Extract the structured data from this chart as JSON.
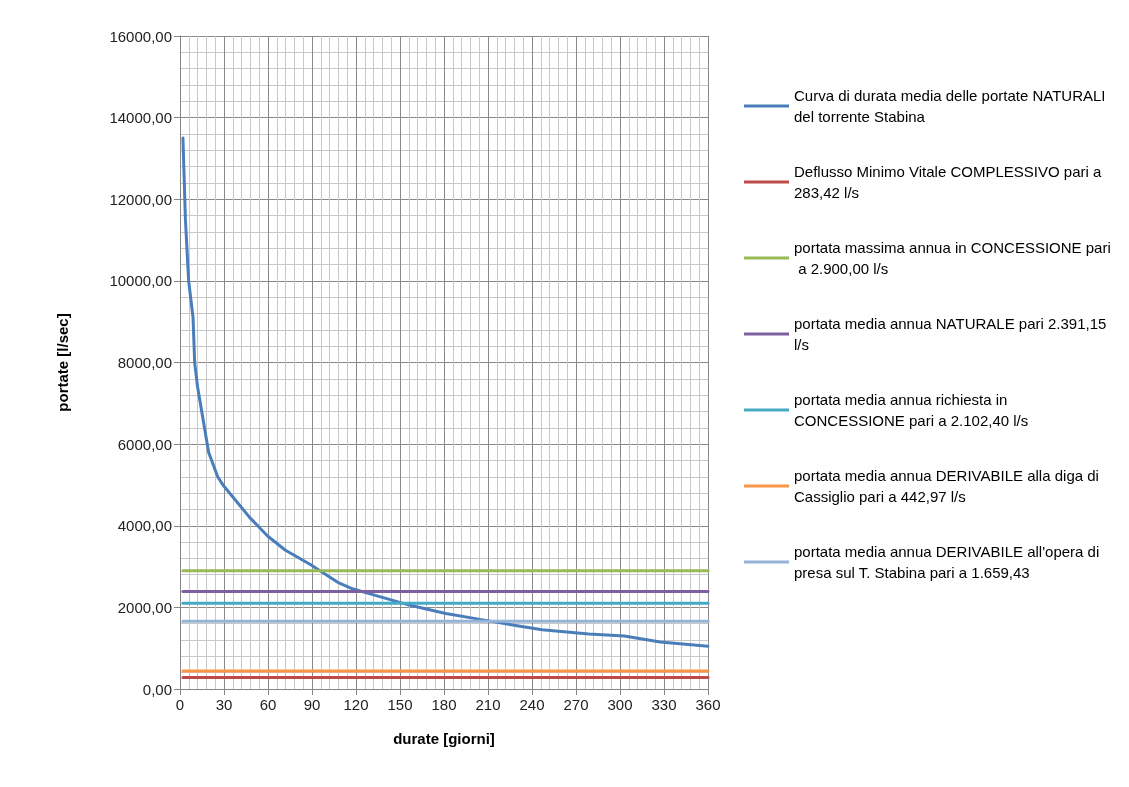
{
  "chart_data": {
    "type": "line",
    "xlabel": "durate [giorni]",
    "ylabel": "portate [l/sec]",
    "xlim": [
      0,
      360
    ],
    "xticks": [
      0,
      30,
      60,
      90,
      120,
      150,
      180,
      210,
      240,
      270,
      300,
      330,
      360
    ],
    "ylim": [
      0,
      16000
    ],
    "yticks": [
      {
        "value": 0,
        "label": "0,00"
      },
      {
        "value": 2000,
        "label": "2000,00"
      },
      {
        "value": 4000,
        "label": "4000,00"
      },
      {
        "value": 6000,
        "label": "6000,00"
      },
      {
        "value": 8000,
        "label": "8000,00"
      },
      {
        "value": 10000,
        "label": "10000,00"
      },
      {
        "value": 12000,
        "label": "12000,00"
      },
      {
        "value": 14000,
        "label": "14000,00"
      },
      {
        "value": 16000,
        "label": "16000,00"
      }
    ],
    "grid": true,
    "legend": "right",
    "marker": "none",
    "line_style": "solid",
    "series": [
      {
        "name": "Curva di durata media delle portate NATURALI del torrente Stabina",
        "color": "#4a7ebb",
        "x": [
          2,
          3.7,
          5.9,
          8.9,
          10,
          12,
          19.5,
          25.7,
          29.3,
          47.6,
          59.7,
          71.9,
          88.9,
          108.3,
          118,
          132.6,
          156.9,
          181.2,
          205.5,
          229.9,
          246.9,
          278.7,
          303,
          327.4,
          360
        ],
        "values": [
          13500,
          11500,
          10000,
          9100,
          8000,
          7400,
          5800,
          5200,
          5000,
          4200,
          3750,
          3400,
          3050,
          2600,
          2450,
          2300,
          2050,
          1850,
          1700,
          1550,
          1450,
          1350,
          1300,
          1150,
          1050
        ]
      },
      {
        "name": "Deflusso Minimo Vitale COMPLESSIVO pari a 283,42 l/s",
        "color": "#be4b48",
        "x": [
          2,
          360
        ],
        "values": [
          283.42,
          283.42
        ]
      },
      {
        "name": "portata massima annua in CONCESSIONE pari a 2.900,00 l/s",
        "color": "#98b954",
        "x": [
          2,
          360
        ],
        "values": [
          2900,
          2900
        ]
      },
      {
        "name": "portata media annua NATURALE pari 2.391,15 l/s",
        "color": "#7d60a0",
        "x": [
          2,
          360
        ],
        "values": [
          2391.15,
          2391.15
        ]
      },
      {
        "name": "portata media annua richiesta in CONCESSIONE pari a 2.102,40 l/s",
        "color": "#46aac5",
        "x": [
          2,
          360
        ],
        "values": [
          2102.4,
          2102.4
        ]
      },
      {
        "name": "portata media annua DERIVABILE alla diga di Cassiglio pari a 442,97 l/s",
        "color": "#f79646",
        "x": [
          2,
          360
        ],
        "values": [
          442.97,
          442.97
        ]
      },
      {
        "name": "portata media annua DERIVABILE all'opera di presa sul T. Stabina pari a 1.659,43",
        "color": "#95b3d7",
        "x": [
          2,
          360
        ],
        "values": [
          1659.43,
          1659.43
        ]
      }
    ]
  }
}
